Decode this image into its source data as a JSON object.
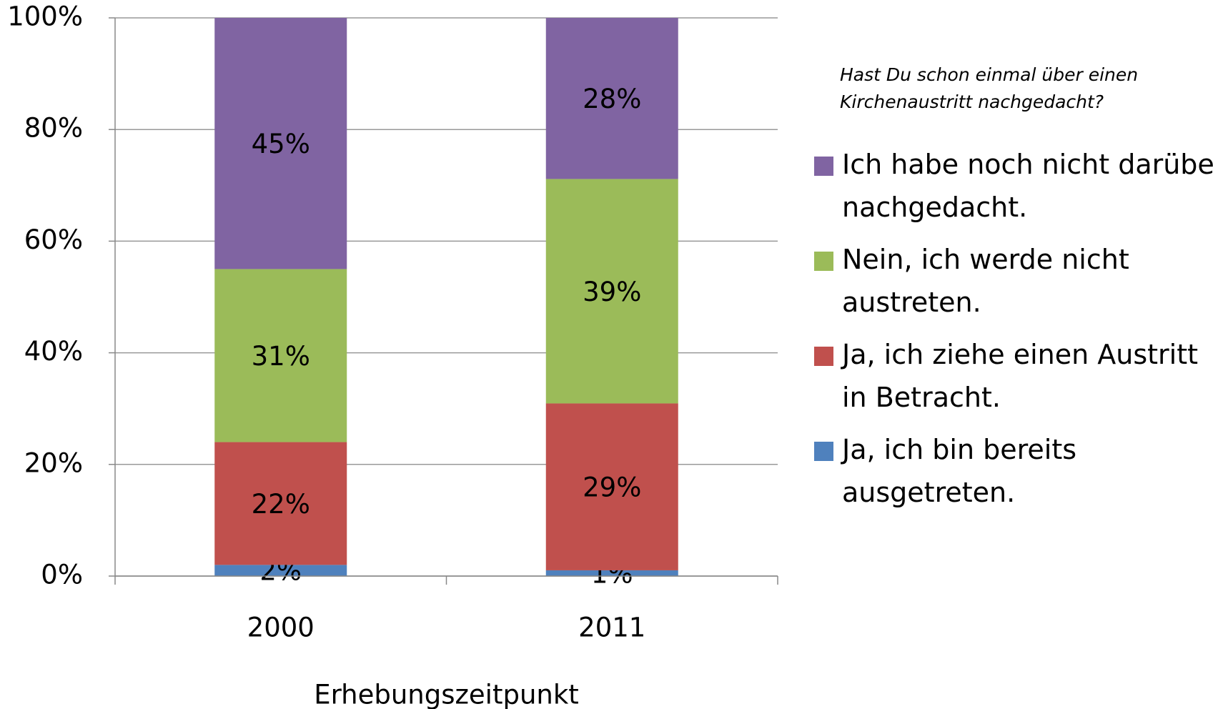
{
  "chart_data": {
    "type": "bar",
    "stack": "percent",
    "legend_title": "Hast Du schon einmal über einen Kirchenaustritt nachgedacht?",
    "x_label": "Erhebungszeitpunkt",
    "categories": [
      "2000",
      "2011"
    ],
    "series": [
      {
        "name": "Ja, ich bin bereits ausgetreten.",
        "color": "#4f81bd",
        "values": [
          2,
          1
        ],
        "value_labels": [
          "2%",
          "1%"
        ]
      },
      {
        "name": "Ja, ich ziehe einen Austritt in Betracht.",
        "color": "#c0504d",
        "values": [
          22,
          29
        ],
        "value_labels": [
          "22%",
          "29%"
        ]
      },
      {
        "name": "Nein, ich werde nicht austreten.",
        "color": "#9bbb59",
        "values": [
          31,
          39
        ],
        "value_labels": [
          "31%",
          "39%"
        ]
      },
      {
        "name": "Ich habe noch nicht darüber nachgedacht.",
        "color": "#8064a2",
        "values": [
          45,
          28
        ],
        "value_labels": [
          "45%",
          "28%"
        ]
      }
    ],
    "ylim": [
      0,
      100
    ],
    "yticks": [
      {
        "value": 0,
        "label": "0%"
      },
      {
        "value": 20,
        "label": "20%"
      },
      {
        "value": 40,
        "label": "40%"
      },
      {
        "value": 60,
        "label": "60%"
      },
      {
        "value": 80,
        "label": "80%"
      },
      {
        "value": 100,
        "label": "100%"
      }
    ],
    "grid": true,
    "legend": "right"
  }
}
